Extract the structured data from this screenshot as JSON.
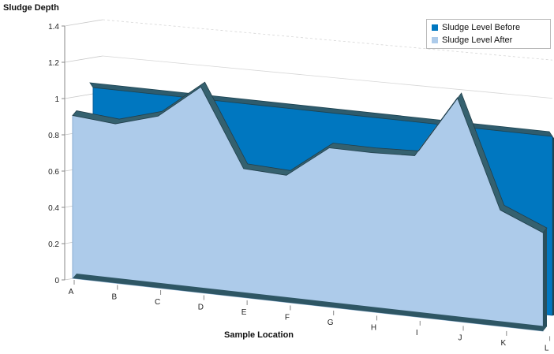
{
  "chart_data": {
    "type": "area",
    "title": "Sludge Depth",
    "xlabel": "Sample Location",
    "ylabel": "",
    "categories": [
      "A",
      "B",
      "C",
      "D",
      "E",
      "F",
      "G",
      "H",
      "I",
      "J",
      "K",
      "L"
    ],
    "ylim": [
      0,
      1.4
    ],
    "yticks": [
      "0",
      "0.2",
      "0.4",
      "0.6",
      "0.8",
      "1",
      "1.2",
      "1.4"
    ],
    "grid": true,
    "legend_position": "top-right",
    "series": [
      {
        "name": "Sludge Level Before",
        "color": "#0077c0",
        "values": [
          1,
          1,
          1,
          1,
          1,
          1,
          1,
          1,
          1,
          1,
          1,
          1
        ]
      },
      {
        "name": "Sludge Level After",
        "color": "#adcbea",
        "values": [
          0.91,
          0.89,
          0.96,
          1.15,
          0.72,
          0.71,
          0.89,
          0.89,
          0.9,
          1.25,
          0.65,
          0.55
        ]
      }
    ]
  }
}
